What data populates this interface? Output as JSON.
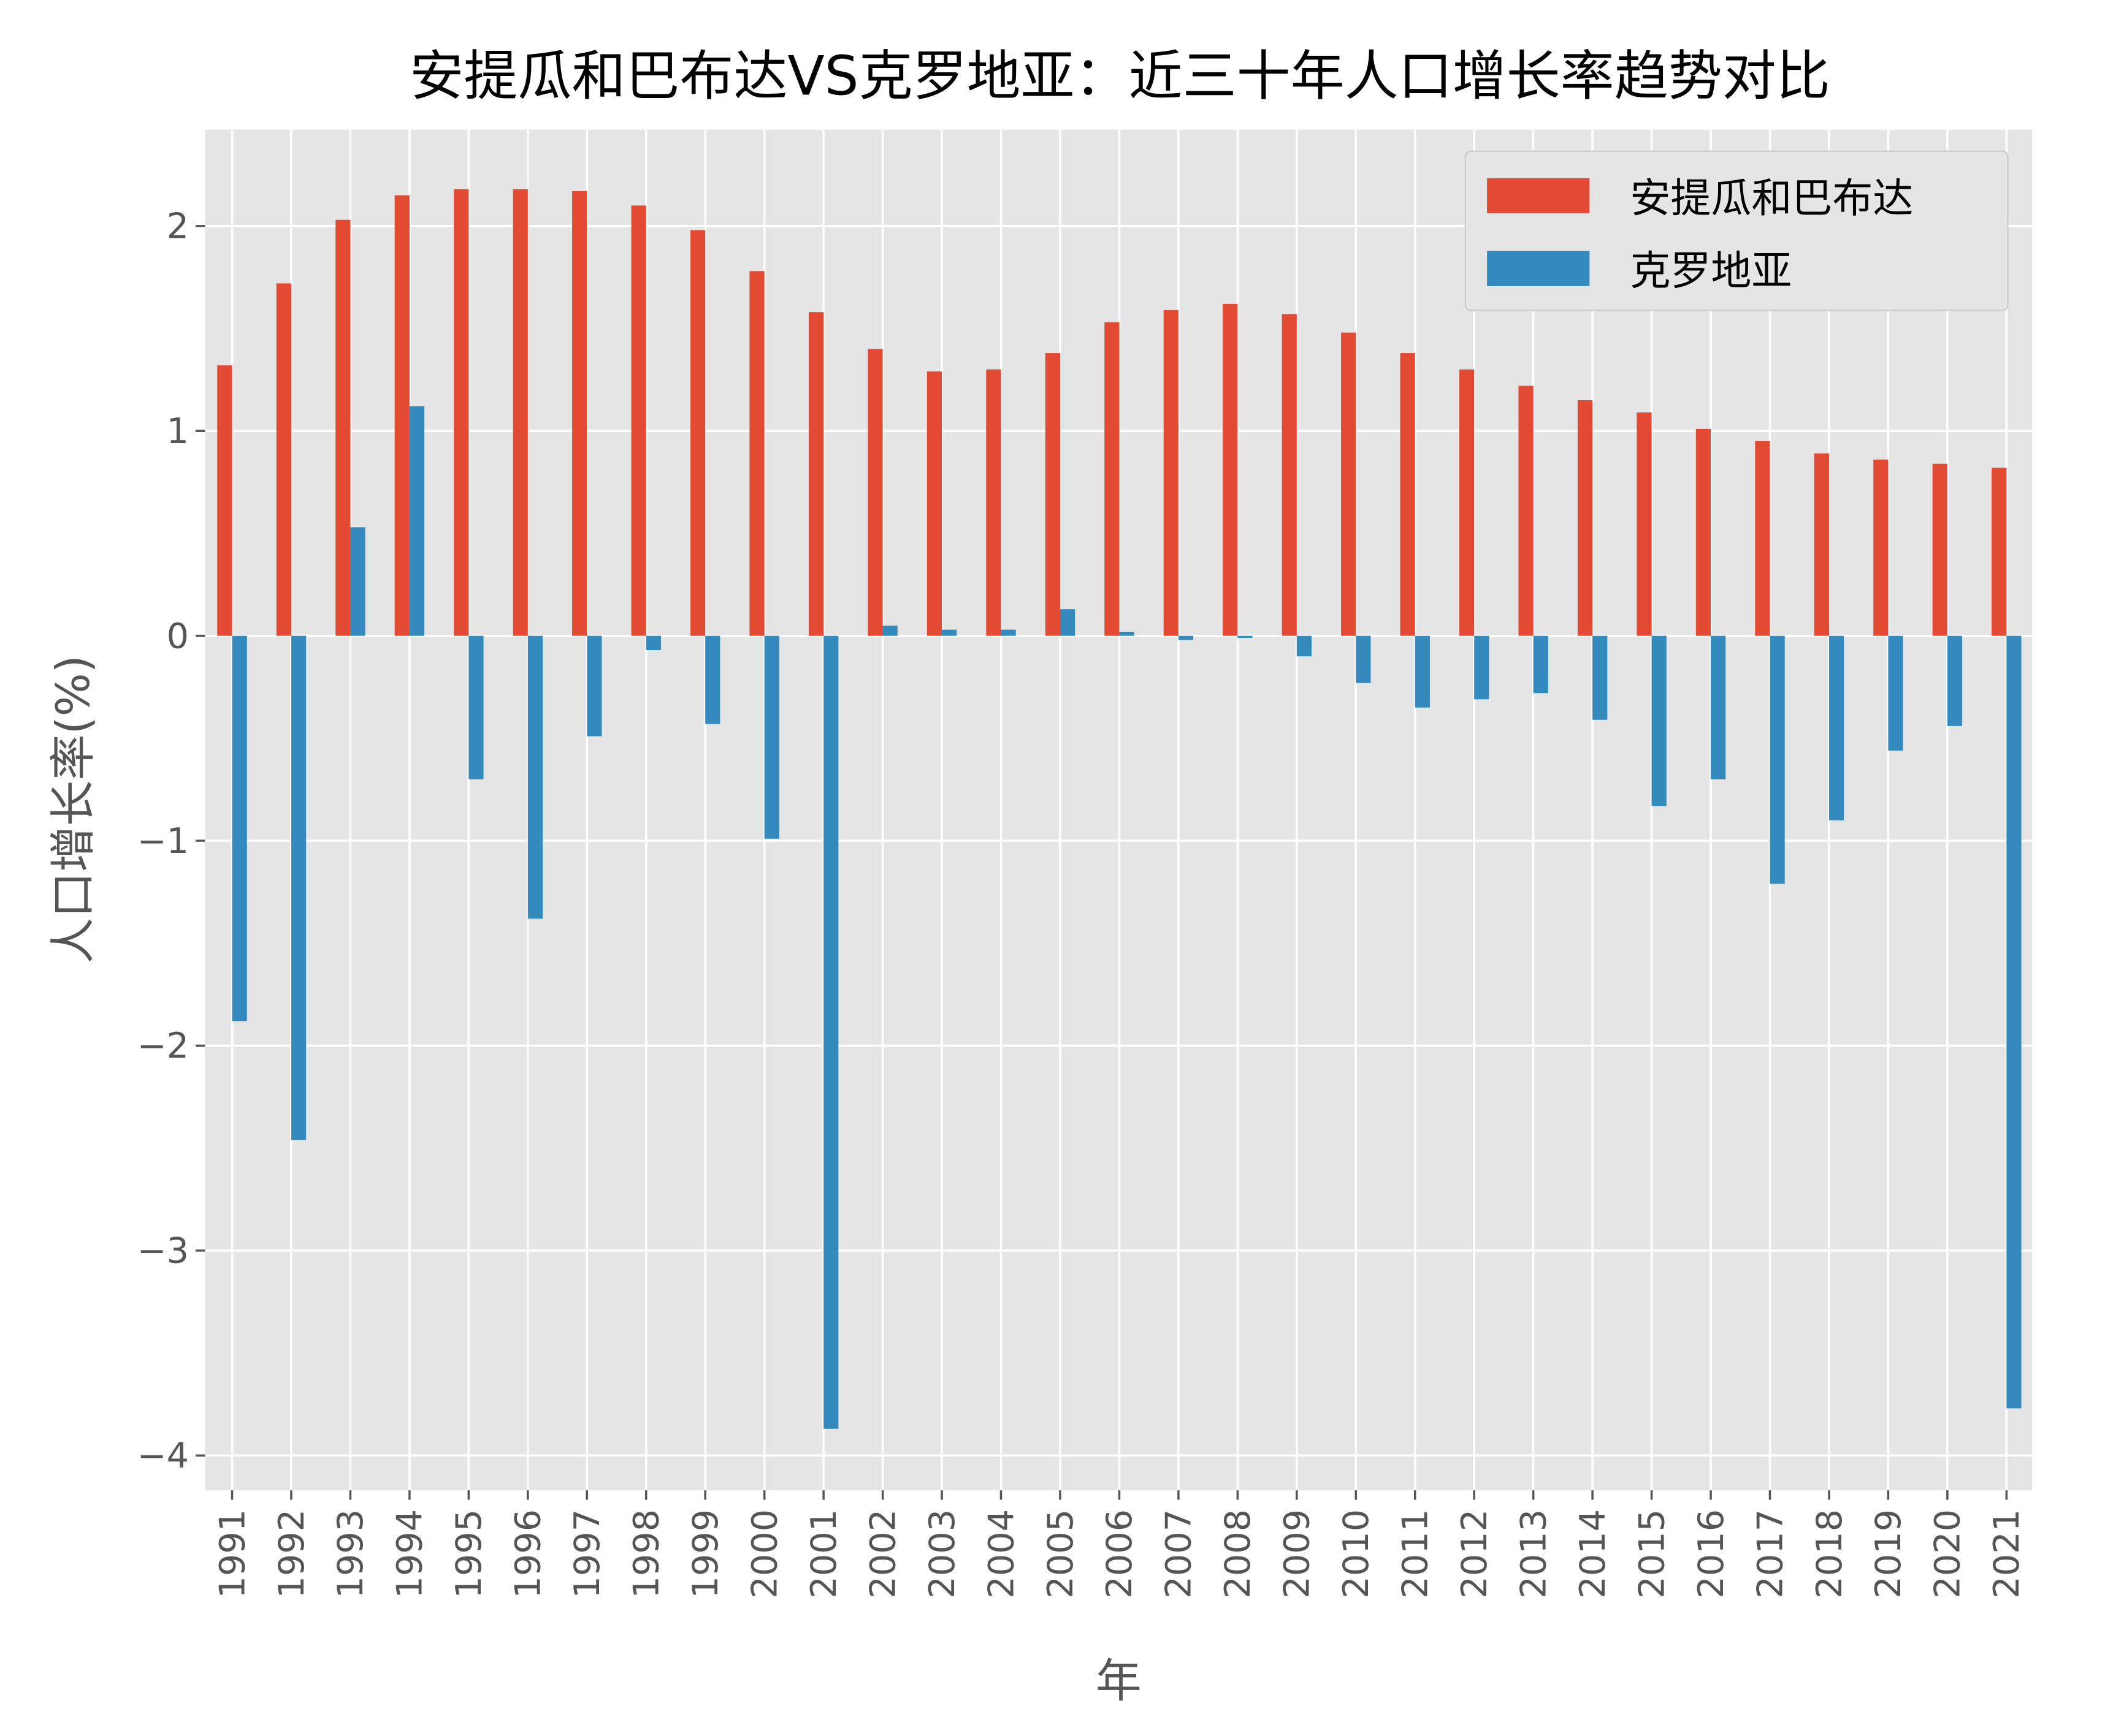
{
  "chart_data": {
    "type": "bar",
    "title": "安提瓜和巴布达VS克罗地亚：近三十年人口增长率趋势对比",
    "xlabel": "年",
    "ylabel": "人口增长率(%)",
    "ylim": [
      -4.17,
      2.47
    ],
    "yticks": [
      -4,
      -3,
      -2,
      -1,
      0,
      1,
      2
    ],
    "grid": true,
    "legend_position": "top-right",
    "categories": [
      "1991",
      "1992",
      "1993",
      "1994",
      "1995",
      "1996",
      "1997",
      "1998",
      "1999",
      "2000",
      "2001",
      "2002",
      "2003",
      "2004",
      "2005",
      "2006",
      "2007",
      "2008",
      "2009",
      "2010",
      "2011",
      "2012",
      "2013",
      "2014",
      "2015",
      "2016",
      "2017",
      "2018",
      "2019",
      "2020",
      "2021"
    ],
    "series": [
      {
        "name": "安提瓜和巴布达",
        "color": "#E24A33",
        "values": [
          1.32,
          1.72,
          2.03,
          2.15,
          2.18,
          2.18,
          2.17,
          2.1,
          1.98,
          1.78,
          1.58,
          1.4,
          1.29,
          1.3,
          1.38,
          1.53,
          1.59,
          1.62,
          1.57,
          1.48,
          1.38,
          1.3,
          1.22,
          1.15,
          1.09,
          1.01,
          0.95,
          0.89,
          0.86,
          0.84,
          0.82
        ]
      },
      {
        "name": "克罗地亚",
        "color": "#348ABD",
        "values": [
          -1.88,
          -2.46,
          0.53,
          1.12,
          -0.7,
          -1.38,
          -0.49,
          -0.07,
          -0.43,
          -0.99,
          -3.87,
          0.05,
          0.03,
          0.03,
          0.13,
          0.02,
          -0.02,
          -0.01,
          -0.1,
          -0.23,
          -0.35,
          -0.31,
          -0.28,
          -0.41,
          -0.83,
          -0.7,
          -1.21,
          -0.9,
          -0.56,
          -0.44,
          -3.77
        ]
      }
    ]
  }
}
